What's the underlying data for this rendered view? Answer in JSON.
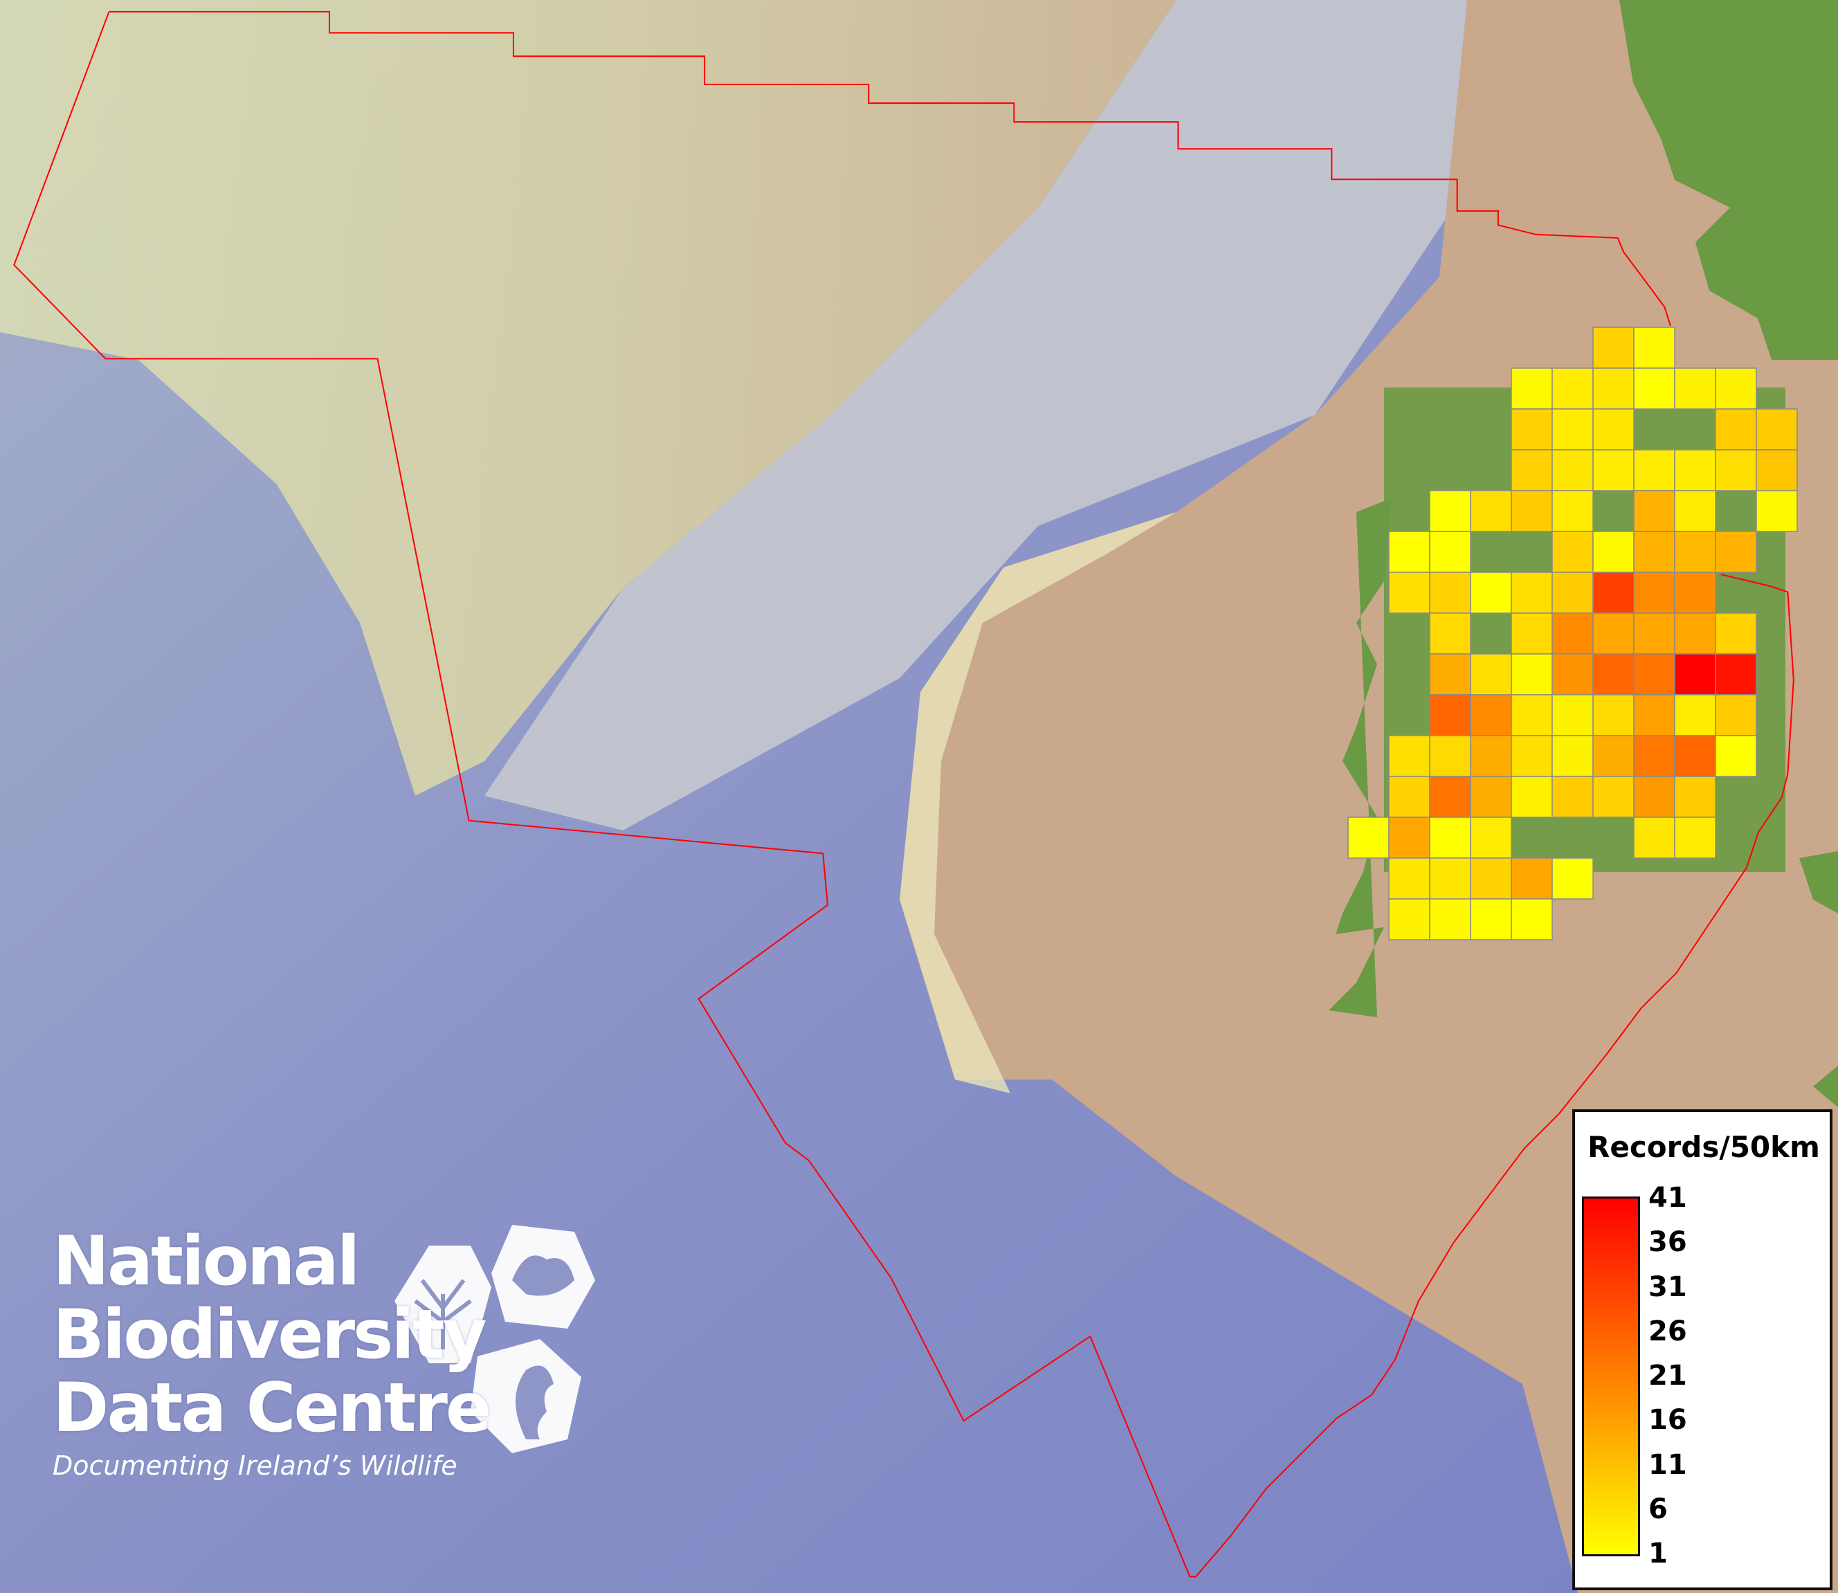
{
  "map": {
    "legend": {
      "title": "Records/50km",
      "ticks": [
        "41",
        "36",
        "31",
        "26",
        "21",
        "16",
        "11",
        "6",
        "1"
      ],
      "min": 1,
      "max": 41,
      "color_low": "#ffff00",
      "color_high": "#ff0000"
    },
    "grid_cells": [
      {
        "row": 0,
        "col": 6,
        "value": 8
      },
      {
        "row": 0,
        "col": 7,
        "value": 2
      },
      {
        "row": 1,
        "col": 4,
        "value": 2
      },
      {
        "row": 1,
        "col": 5,
        "value": 4
      },
      {
        "row": 1,
        "col": 6,
        "value": 5
      },
      {
        "row": 1,
        "col": 7,
        "value": 1
      },
      {
        "row": 1,
        "col": 8,
        "value": 3
      },
      {
        "row": 1,
        "col": 9,
        "value": 3
      },
      {
        "row": 2,
        "col": 4,
        "value": 8
      },
      {
        "row": 2,
        "col": 5,
        "value": 4
      },
      {
        "row": 2,
        "col": 6,
        "value": 5
      },
      {
        "row": 2,
        "col": 9,
        "value": 9
      },
      {
        "row": 2,
        "col": 10,
        "value": 9
      },
      {
        "row": 3,
        "col": 4,
        "value": 8
      },
      {
        "row": 3,
        "col": 5,
        "value": 5
      },
      {
        "row": 3,
        "col": 6,
        "value": 4
      },
      {
        "row": 3,
        "col": 7,
        "value": 4
      },
      {
        "row": 3,
        "col": 8,
        "value": 4
      },
      {
        "row": 3,
        "col": 9,
        "value": 6
      },
      {
        "row": 3,
        "col": 10,
        "value": 10
      },
      {
        "row": 4,
        "col": 2,
        "value": 1
      },
      {
        "row": 4,
        "col": 3,
        "value": 6
      },
      {
        "row": 4,
        "col": 4,
        "value": 9
      },
      {
        "row": 4,
        "col": 5,
        "value": 4
      },
      {
        "row": 4,
        "col": 7,
        "value": 13
      },
      {
        "row": 4,
        "col": 8,
        "value": 4
      },
      {
        "row": 4,
        "col": 10,
        "value": 2
      },
      {
        "row": 5,
        "col": 1,
        "value": 1
      },
      {
        "row": 5,
        "col": 2,
        "value": 1
      },
      {
        "row": 5,
        "col": 5,
        "value": 8
      },
      {
        "row": 5,
        "col": 6,
        "value": 2
      },
      {
        "row": 5,
        "col": 7,
        "value": 13
      },
      {
        "row": 5,
        "col": 8,
        "value": 12
      },
      {
        "row": 5,
        "col": 9,
        "value": 13
      },
      {
        "row": 6,
        "col": 1,
        "value": 6
      },
      {
        "row": 6,
        "col": 2,
        "value": 8
      },
      {
        "row": 6,
        "col": 3,
        "value": 1
      },
      {
        "row": 6,
        "col": 4,
        "value": 6
      },
      {
        "row": 6,
        "col": 5,
        "value": 9
      },
      {
        "row": 6,
        "col": 6,
        "value": 31
      },
      {
        "row": 6,
        "col": 7,
        "value": 19
      },
      {
        "row": 6,
        "col": 8,
        "value": 19
      },
      {
        "row": 7,
        "col": 2,
        "value": 7
      },
      {
        "row": 7,
        "col": 4,
        "value": 7
      },
      {
        "row": 7,
        "col": 5,
        "value": 19
      },
      {
        "row": 7,
        "col": 6,
        "value": 15
      },
      {
        "row": 7,
        "col": 7,
        "value": 15
      },
      {
        "row": 7,
        "col": 8,
        "value": 15
      },
      {
        "row": 7,
        "col": 9,
        "value": 8
      },
      {
        "row": 8,
        "col": 2,
        "value": 14
      },
      {
        "row": 8,
        "col": 3,
        "value": 6
      },
      {
        "row": 8,
        "col": 4,
        "value": 2
      },
      {
        "row": 8,
        "col": 5,
        "value": 18
      },
      {
        "row": 8,
        "col": 6,
        "value": 25
      },
      {
        "row": 8,
        "col": 7,
        "value": 23
      },
      {
        "row": 8,
        "col": 8,
        "value": 41
      },
      {
        "row": 8,
        "col": 9,
        "value": 38
      },
      {
        "row": 9,
        "col": 2,
        "value": 25
      },
      {
        "row": 9,
        "col": 3,
        "value": 19
      },
      {
        "row": 9,
        "col": 4,
        "value": 5
      },
      {
        "row": 9,
        "col": 5,
        "value": 3
      },
      {
        "row": 9,
        "col": 6,
        "value": 7
      },
      {
        "row": 9,
        "col": 7,
        "value": 16
      },
      {
        "row": 9,
        "col": 8,
        "value": 4
      },
      {
        "row": 9,
        "col": 9,
        "value": 9
      },
      {
        "row": 10,
        "col": 1,
        "value": 6
      },
      {
        "row": 10,
        "col": 2,
        "value": 7
      },
      {
        "row": 10,
        "col": 3,
        "value": 14
      },
      {
        "row": 10,
        "col": 4,
        "value": 6
      },
      {
        "row": 10,
        "col": 5,
        "value": 3
      },
      {
        "row": 10,
        "col": 6,
        "value": 14
      },
      {
        "row": 10,
        "col": 7,
        "value": 22
      },
      {
        "row": 10,
        "col": 8,
        "value": 25
      },
      {
        "row": 10,
        "col": 9,
        "value": 1
      },
      {
        "row": 11,
        "col": 1,
        "value": 8
      },
      {
        "row": 11,
        "col": 2,
        "value": 23
      },
      {
        "row": 11,
        "col": 3,
        "value": 14
      },
      {
        "row": 11,
        "col": 4,
        "value": 3
      },
      {
        "row": 11,
        "col": 5,
        "value": 9
      },
      {
        "row": 11,
        "col": 6,
        "value": 8
      },
      {
        "row": 11,
        "col": 7,
        "value": 17
      },
      {
        "row": 11,
        "col": 8,
        "value": 9
      },
      {
        "row": 12,
        "col": 0,
        "value": 1
      },
      {
        "row": 12,
        "col": 1,
        "value": 15
      },
      {
        "row": 12,
        "col": 2,
        "value": 1
      },
      {
        "row": 12,
        "col": 3,
        "value": 4
      },
      {
        "row": 12,
        "col": 7,
        "value": 5
      },
      {
        "row": 12,
        "col": 8,
        "value": 4
      },
      {
        "row": 13,
        "col": 1,
        "value": 5
      },
      {
        "row": 13,
        "col": 2,
        "value": 5
      },
      {
        "row": 13,
        "col": 3,
        "value": 8
      },
      {
        "row": 13,
        "col": 4,
        "value": 15
      },
      {
        "row": 13,
        "col": 5,
        "value": 1
      },
      {
        "row": 14,
        "col": 1,
        "value": 3
      },
      {
        "row": 14,
        "col": 2,
        "value": 2
      },
      {
        "row": 14,
        "col": 3,
        "value": 1
      },
      {
        "row": 14,
        "col": 4,
        "value": 1
      }
    ],
    "colors": {
      "deep_sea": "#7f87c6",
      "shelf": "#dcd9a8",
      "slope": "#b8bcc8",
      "land_shelf": "#caa88c",
      "land": "#6a9a44",
      "boundary": "#ff0000",
      "grid_line": "#8a8a8a"
    }
  },
  "logo": {
    "line1": "National",
    "line2": "Biodiversity",
    "line3": "Data Centre",
    "tagline": "Documenting Ireland’s Wildlife"
  }
}
